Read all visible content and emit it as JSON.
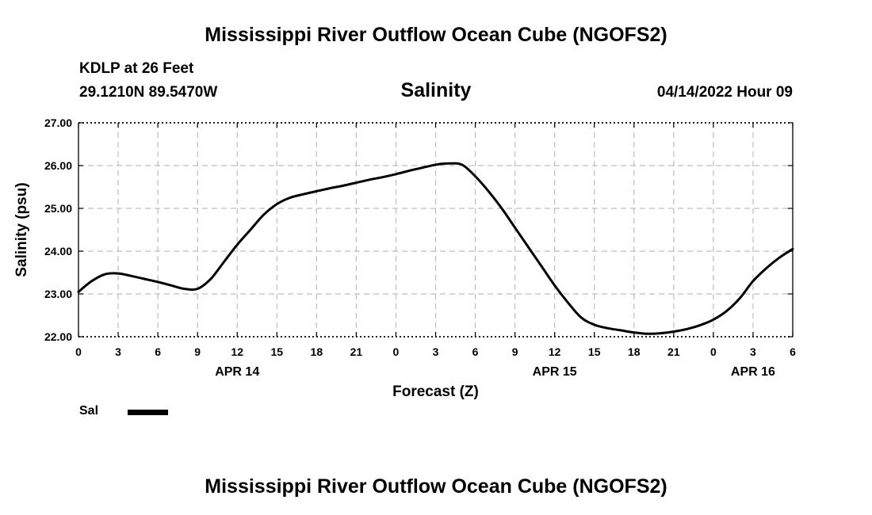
{
  "header": {
    "title": "Mississippi River Outflow Ocean Cube (NGOFS2)",
    "station": "KDLP at 26 Feet",
    "coords": "29.1210N  89.5470W",
    "timestamp": "04/14/2022 Hour 09"
  },
  "footer": {
    "title": "Mississippi River Outflow Ocean Cube (NGOFS2)"
  },
  "legend": {
    "label": "Sal",
    "color": "#000000"
  },
  "chart_data": {
    "type": "line",
    "title": "Salinity",
    "xlabel": "Forecast (Z)",
    "ylabel": "Salinity (psu)",
    "xlim": [
      0,
      54
    ],
    "ylim": [
      22,
      27
    ],
    "x_unit": "hours from 04/14/2022 00Z",
    "x_ticks": [
      0,
      3,
      6,
      9,
      12,
      15,
      18,
      21,
      24,
      27,
      30,
      33,
      36,
      39,
      42,
      45,
      48,
      51,
      54
    ],
    "x_tick_labels": [
      "0",
      "3",
      "6",
      "9",
      "12",
      "15",
      "18",
      "21",
      "0",
      "3",
      "6",
      "9",
      "12",
      "15",
      "18",
      "21",
      "0",
      "3",
      "6"
    ],
    "date_labels": [
      {
        "x": 12,
        "label": "APR 14"
      },
      {
        "x": 36,
        "label": "APR 15"
      },
      {
        "x": 51,
        "label": "APR 16"
      }
    ],
    "y_ticks": [
      22,
      23,
      24,
      25,
      26,
      27
    ],
    "y_tick_labels": [
      "22.00",
      "23.00",
      "24.00",
      "25.00",
      "26.00",
      "27.00"
    ],
    "grid": true,
    "legend_position": "bottom-left",
    "series": [
      {
        "name": "Sal",
        "color": "#000000",
        "x": [
          0,
          1,
          2,
          3,
          4,
          5,
          6,
          7,
          8,
          9,
          10,
          11,
          12,
          13,
          14,
          15,
          16,
          17,
          18,
          19,
          20,
          21,
          22,
          23,
          24,
          25,
          26,
          27,
          28,
          29,
          30,
          31,
          32,
          33,
          34,
          35,
          36,
          37,
          38,
          39,
          40,
          41,
          42,
          43,
          44,
          45,
          46,
          47,
          48,
          49,
          50,
          51,
          52,
          53,
          54
        ],
        "y": [
          23.05,
          23.3,
          23.46,
          23.48,
          23.42,
          23.35,
          23.28,
          23.2,
          23.12,
          23.12,
          23.35,
          23.75,
          24.15,
          24.5,
          24.85,
          25.1,
          25.25,
          25.33,
          25.4,
          25.47,
          25.53,
          25.6,
          25.67,
          25.73,
          25.8,
          25.88,
          25.95,
          26.02,
          26.05,
          26.02,
          25.75,
          25.4,
          25.0,
          24.55,
          24.1,
          23.65,
          23.2,
          22.8,
          22.45,
          22.28,
          22.2,
          22.15,
          22.1,
          22.07,
          22.08,
          22.12,
          22.18,
          22.27,
          22.4,
          22.6,
          22.9,
          23.3,
          23.6,
          23.85,
          24.05
        ]
      }
    ]
  }
}
